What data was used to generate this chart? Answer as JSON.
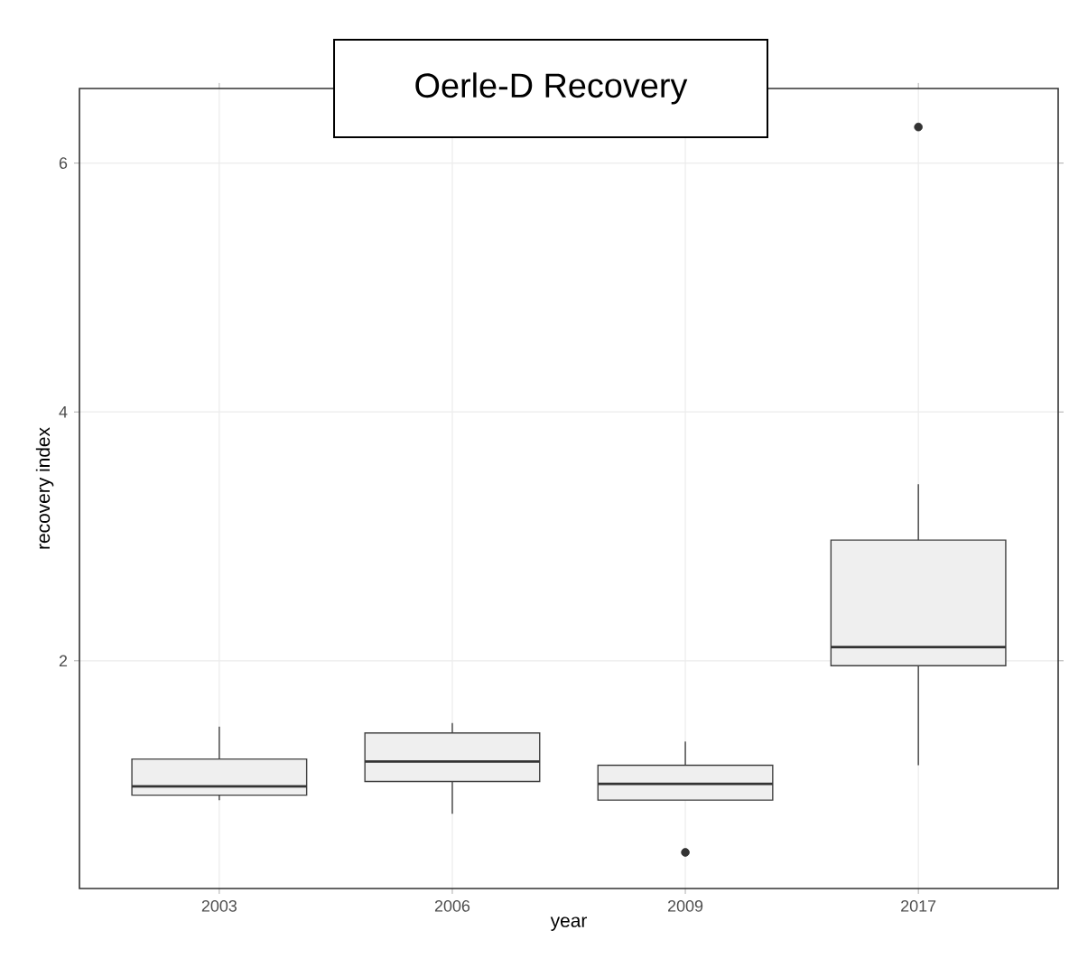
{
  "chart_data": {
    "type": "box",
    "title": "Oerle-D Recovery",
    "xlabel": "year",
    "ylabel": "recovery index",
    "categories": [
      "2003",
      "2006",
      "2009",
      "2017"
    ],
    "boxes": [
      {
        "low": 0.88,
        "q1": 0.92,
        "median": 0.99,
        "q3": 1.21,
        "high": 1.47
      },
      {
        "low": 0.77,
        "q1": 1.03,
        "median": 1.19,
        "q3": 1.42,
        "high": 1.5
      },
      {
        "low": 0.88,
        "q1": 0.88,
        "median": 1.01,
        "q3": 1.16,
        "high": 1.35,
        "outliers": [
          0.46
        ]
      },
      {
        "low": 1.16,
        "q1": 1.96,
        "median": 2.11,
        "q3": 2.97,
        "high": 3.42,
        "outliers": [
          6.29
        ]
      }
    ],
    "color": "#efefef",
    "ylim": [
      0.17,
      6.6
    ],
    "yticks": [
      2,
      4,
      6
    ],
    "grid": true
  }
}
